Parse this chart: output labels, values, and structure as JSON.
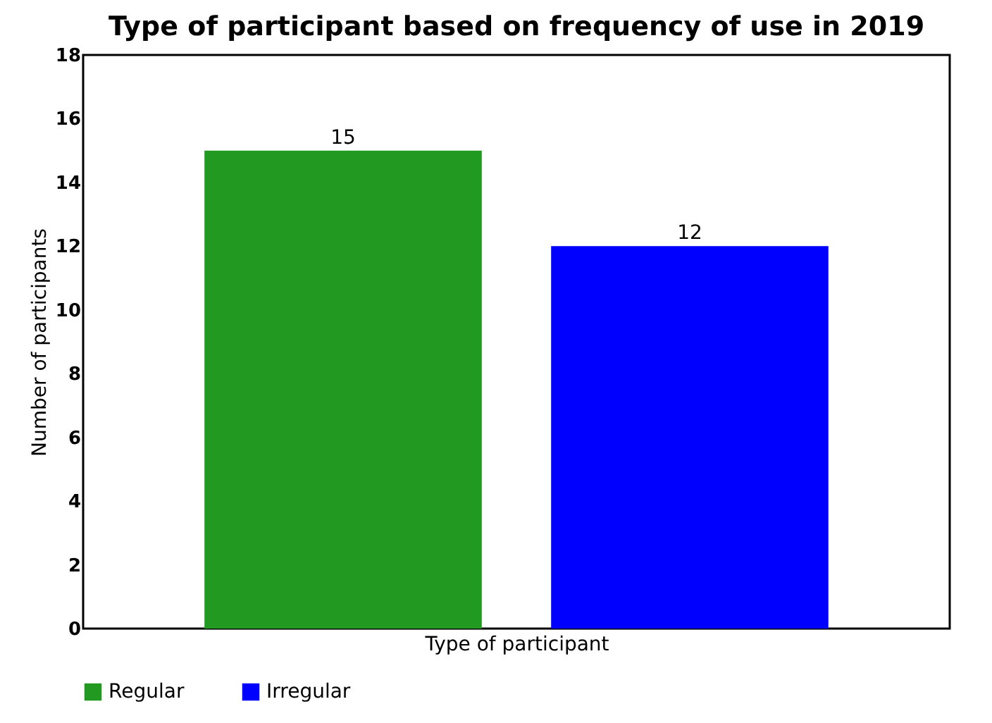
{
  "chart_data": {
    "type": "bar",
    "title": "Type of participant based on frequency of use in 2019",
    "xlabel": "Type of participant",
    "ylabel": "Number of participants",
    "categories": [
      null
    ],
    "series": [
      {
        "name": "Regular",
        "color": "#229a22",
        "values": [
          15
        ]
      },
      {
        "name": "Irregular",
        "color": "#0000ff",
        "values": [
          12
        ]
      }
    ],
    "ylim": [
      0,
      18
    ],
    "yticks": [
      0,
      2,
      4,
      6,
      8,
      10,
      12,
      14,
      16,
      18
    ],
    "data_labels": true,
    "grid": false,
    "legend": "bottom left"
  }
}
